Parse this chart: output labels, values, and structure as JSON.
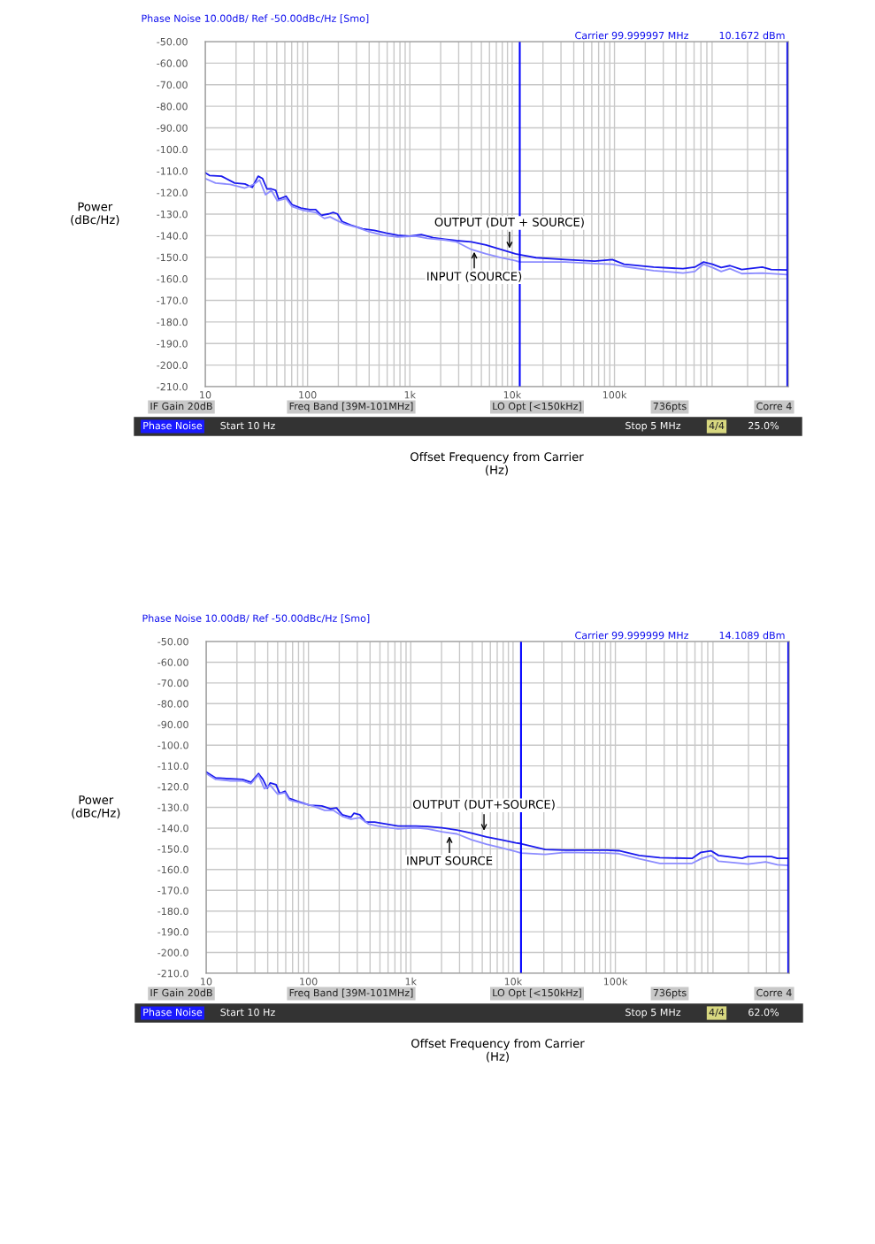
{
  "chart_data": [
    {
      "type": "line",
      "title": "Phase Noise 10.00dB/ Ref -50.00dBc/Hz [Smo]",
      "xlabel": "Offset Frequency from Carrier\n(Hz)",
      "ylabel": "Power\n(dBc/Hz)",
      "log": "x",
      "grid": true,
      "xlim": [
        10,
        5000000
      ],
      "ylim": [
        -210,
        -50
      ],
      "xticks": [
        10,
        100,
        {
          "value": 1000,
          "label": "1k"
        },
        {
          "value": 10000,
          "label": "10k"
        },
        {
          "value": 100000,
          "label": "100k"
        }
      ],
      "yticks": [
        {
          "value": -50,
          "label": "-50.00"
        },
        {
          "value": -60,
          "label": "-60.00"
        },
        {
          "value": -70,
          "label": "-70.00"
        },
        {
          "value": -80,
          "label": "-80.00"
        },
        {
          "value": -90,
          "label": "-90.00"
        },
        {
          "value": -100,
          "label": "-100.0"
        },
        {
          "value": -110,
          "label": "-110.0"
        },
        {
          "value": -120,
          "label": "-120.0"
        },
        {
          "value": -130,
          "label": "-130.0"
        },
        {
          "value": -140,
          "label": "-140.0"
        },
        {
          "value": -150,
          "label": "-150.0"
        },
        {
          "value": -160,
          "label": "-160.0"
        },
        {
          "value": -170,
          "label": "-170.0"
        },
        {
          "value": -180,
          "label": "-180.0"
        },
        {
          "value": -190,
          "label": "-190.0"
        },
        {
          "value": -200,
          "label": "-200.0"
        },
        {
          "value": -210,
          "label": "-210.0"
        }
      ],
      "series": [
        {
          "color": "#1a1aee",
          "x": [
            10,
            11,
            14.4,
            19.4,
            24.4,
            28.8,
            32.9,
            36.3,
            40.1,
            44.3,
            48.9,
            52.3,
            61.7,
            70.4,
            85.9,
            105,
            120,
            136,
            161,
            178,
            196,
            217,
            264,
            345,
            449,
            585,
            762,
            993,
            1294,
            1687,
            2198,
            2864,
            3990,
            5546,
            7727,
            10760,
            11860,
            17100,
            33100,
            64100,
            95300,
            124000,
            241000,
            467000,
            609000,
            743000,
            906000,
            1104000,
            1346000,
            1753000,
            2786000,
            3397000,
            4731000
          ],
          "values": [
            -110.8,
            -112.1,
            -112.4,
            -115.6,
            -116,
            -117.6,
            -112.4,
            -113.5,
            -118.3,
            -118.3,
            -119,
            -123.1,
            -121.7,
            -125.6,
            -127.2,
            -127.9,
            -127.9,
            -130.6,
            -129.9,
            -129.2,
            -129.9,
            -133.4,
            -135.1,
            -136.8,
            -137.5,
            -138.8,
            -139.8,
            -140.2,
            -139.5,
            -140.9,
            -141.6,
            -142.3,
            -142.9,
            -144.3,
            -146.4,
            -148.4,
            -148.8,
            -150.2,
            -151.1,
            -151.8,
            -151.1,
            -153.2,
            -154.6,
            -155.3,
            -154.6,
            -152.2,
            -153.2,
            -154.8,
            -153.9,
            -155.7,
            -154.6,
            -155.7,
            -155.9
          ]
        },
        {
          "color": "#8c8cff",
          "x": [
            10,
            12.6,
            17.5,
            24.4,
            29.8,
            34,
            38.8,
            44.3,
            50.6,
            61.7,
            70.4,
            91.8,
            120,
            146,
            166,
            190,
            232,
            302,
            394,
            548,
            762,
            1134,
            1479,
            2198,
            2864,
            3990,
            5546,
            7727,
            10760,
            11860,
            17100,
            33100,
            64100,
            95300,
            124000,
            241000,
            467000,
            609000,
            743000,
            906000,
            1104000,
            1346000,
            1753000,
            2786000,
            4731000
          ],
          "values": [
            -113.5,
            -115.6,
            -116.2,
            -117.9,
            -116.2,
            -114.2,
            -121,
            -119,
            -123.8,
            -122.8,
            -126.5,
            -128.3,
            -129.2,
            -132,
            -131.3,
            -132.7,
            -134.7,
            -136.1,
            -138.1,
            -139.8,
            -140.6,
            -140.2,
            -141.2,
            -142,
            -142.9,
            -146.4,
            -148.4,
            -150.2,
            -151.6,
            -152.2,
            -152.2,
            -152.2,
            -152.9,
            -153.2,
            -154.3,
            -156.2,
            -157.3,
            -156.6,
            -153.2,
            -154.8,
            -156.6,
            -155.3,
            -157.6,
            -157.3,
            -158
          ]
        }
      ],
      "ref_lines": [
        {
          "axis": "x",
          "value": 11860,
          "color": "#0000ff"
        },
        {
          "axis": "x",
          "value": 4900000,
          "color": "#0000ff"
        }
      ],
      "annotations": [
        {
          "text": "OUTPUT (DUT + SOURCE)",
          "x": 9420,
          "y": -147
        },
        {
          "text": "INPUT (SOURCE)",
          "x": 4260,
          "y": -146.4
        },
        "Carrier 99.999997 MHz",
        "10.1672 dBm",
        "IF Gain 20dB",
        "Freq Band [39M-101MHz]",
        "LO Opt [<150kHz]",
        "736pts",
        "Corre 4",
        "Phase Noise",
        "Start 10 Hz",
        "Stop 5 MHz",
        "4/4",
        "25.0%"
      ]
    },
    {
      "type": "line",
      "title": "Phase Noise 10.00dB/ Ref -50.00dBc/Hz [Smo]",
      "xlabel": "Offset Frequency from Carrier\n(Hz)",
      "ylabel": "Power\n(dBc/Hz)",
      "log": "x",
      "grid": true,
      "xlim": [
        10,
        5000000
      ],
      "ylim": [
        -210,
        -50
      ],
      "xticks": [
        10,
        100,
        {
          "value": 1000,
          "label": "1k"
        },
        {
          "value": 10000,
          "label": "10k"
        },
        {
          "value": 100000,
          "label": "100k"
        }
      ],
      "yticks": [
        {
          "value": -50,
          "label": "-50.00"
        },
        {
          "value": -60,
          "label": "-60.00"
        },
        {
          "value": -70,
          "label": "-70.00"
        },
        {
          "value": -80,
          "label": "-80.00"
        },
        {
          "value": -90,
          "label": "-90.00"
        },
        {
          "value": -100,
          "label": "-100.0"
        },
        {
          "value": -110,
          "label": "-110.0"
        },
        {
          "value": -120,
          "label": "-120.0"
        },
        {
          "value": -130,
          "label": "-130.0"
        },
        {
          "value": -140,
          "label": "-140.0"
        },
        {
          "value": -150,
          "label": "-150.0"
        },
        {
          "value": -160,
          "label": "-160.0"
        },
        {
          "value": -170,
          "label": "-170.0"
        },
        {
          "value": -180,
          "label": "-180.0"
        },
        {
          "value": -190,
          "label": "-190.0"
        },
        {
          "value": -200,
          "label": "-200.0"
        },
        {
          "value": -210,
          "label": "-210.0"
        }
      ],
      "series": [
        {
          "color": "#1a1aee",
          "x": [
            10,
            12.4,
            17.3,
            22.6,
            27.5,
            32.5,
            35.9,
            39.6,
            42.3,
            48.3,
            52.3,
            58.9,
            65,
            79.3,
            103,
            135,
            164,
            188,
            214,
            261,
            279,
            318,
            363,
            443,
            577,
            752,
            1119,
            1459,
            2030,
            2825,
            3933,
            5480,
            7630,
            10620,
            11960,
            20600,
            32700,
            82600,
            108000,
            171000,
            272000,
            562000,
            686000,
            865000,
            1020000,
            1733000,
            1979000,
            3357000,
            3836000,
            4831000
          ],
          "values": [
            -112.9,
            -115.8,
            -116.2,
            -116.5,
            -117.9,
            -113.7,
            -116.5,
            -120.8,
            -118.2,
            -119.1,
            -123.3,
            -122.2,
            -125.7,
            -127.2,
            -129,
            -129.3,
            -130.7,
            -130.3,
            -133.6,
            -134.7,
            -132.8,
            -133.6,
            -137.1,
            -137.1,
            -138.1,
            -139,
            -139,
            -139.2,
            -139.9,
            -140.9,
            -142.4,
            -144.2,
            -145.6,
            -147.1,
            -147.5,
            -150.3,
            -150.6,
            -150.6,
            -150.9,
            -153.2,
            -154.3,
            -154.6,
            -151.7,
            -151,
            -153.2,
            -154.6,
            -153.7,
            -153.7,
            -154.6,
            -154.6
          ]
        },
        {
          "color": "#8c8cff",
          "x": [
            10,
            12.4,
            17.3,
            22.6,
            27.5,
            32.5,
            37.1,
            42.3,
            49.9,
            58.9,
            65,
            84.8,
            110,
            144,
            175,
            214,
            261,
            318,
            388,
            506,
            752,
            1119,
            1459,
            2030,
            2825,
            3933,
            5480,
            7630,
            10620,
            11960,
            20600,
            32700,
            82600,
            108000,
            171000,
            272000,
            562000,
            686000,
            865000,
            1020000,
            1733000,
            1979000,
            2944000,
            3836000,
            4831000
          ],
          "values": [
            -113.7,
            -116.5,
            -117.2,
            -117.2,
            -118.6,
            -114.4,
            -121,
            -119.3,
            -123.6,
            -122.9,
            -126.4,
            -127.9,
            -129.3,
            -131.4,
            -131.4,
            -134.3,
            -135.7,
            -135,
            -138.1,
            -139.2,
            -140.4,
            -139.9,
            -140.4,
            -141.8,
            -142.8,
            -145.6,
            -147.8,
            -149.5,
            -151.3,
            -152,
            -152.7,
            -151.7,
            -152,
            -152.3,
            -154.8,
            -157,
            -157,
            -154.8,
            -153.2,
            -156,
            -157,
            -157.4,
            -156.3,
            -157.7,
            -158
          ]
        }
      ],
      "ref_lines": [
        {
          "axis": "x",
          "value": 11960,
          "color": "#0000ff"
        },
        {
          "axis": "x",
          "value": 4900000,
          "color": "#0000ff"
        }
      ],
      "annotations": [
        {
          "text": "OUTPUT (DUT+SOURCE)",
          "x": 5200,
          "y": -142.4
        },
        {
          "text": "INPUT SOURCE",
          "x": 2390,
          "y": -142.8
        },
        "Carrier 99.999999 MHz",
        "14.1089 dBm",
        "IF Gain 20dB",
        "Freq Band [39M-101MHz]",
        "LO Opt [<150kHz]",
        "736pts",
        "Corre 4",
        "Phase Noise",
        "Start 10 Hz",
        "Stop 5 MHz",
        "4/4",
        "62.0%"
      ]
    }
  ]
}
